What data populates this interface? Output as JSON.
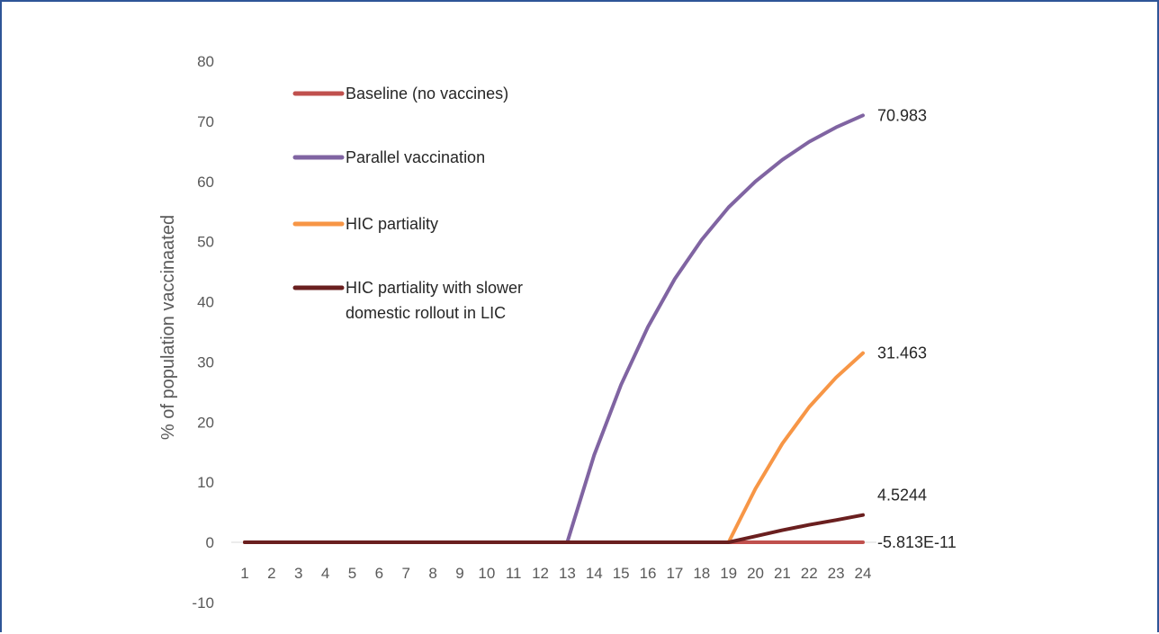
{
  "chart_data": {
    "type": "line",
    "title": "",
    "xlabel": "",
    "ylabel": "% of population vaccinaated",
    "categories": [
      "1",
      "2",
      "3",
      "4",
      "5",
      "6",
      "7",
      "8",
      "9",
      "10",
      "11",
      "12",
      "13",
      "14",
      "15",
      "16",
      "17",
      "18",
      "19",
      "20",
      "21",
      "22",
      "23",
      "24"
    ],
    "ylim": [
      -10,
      80
    ],
    "yticks": [
      "80",
      "70",
      "60",
      "50",
      "40",
      "30",
      "20",
      "10",
      "0",
      "-10"
    ],
    "grid": false,
    "legend_position": "top-left-inside",
    "series": [
      {
        "name": "Baseline (no vaccines)",
        "color": "#c0504d",
        "values": [
          0,
          0,
          0,
          0,
          0,
          0,
          0,
          0,
          0,
          0,
          0,
          0,
          0,
          0,
          0,
          0,
          0,
          0,
          0,
          0,
          0,
          0,
          0,
          -5.813e-11
        ],
        "end_label": "-5.813E-11"
      },
      {
        "name": "Parallel vaccination",
        "color": "#8064a2",
        "values": [
          0,
          0,
          0,
          0,
          0,
          0,
          0,
          0,
          0,
          0,
          0,
          0,
          0,
          14.5,
          26.2,
          35.8,
          43.8,
          50.3,
          55.7,
          60.0,
          63.6,
          66.6,
          69.0,
          70.983
        ],
        "end_label": "70.983"
      },
      {
        "name": "HIC partiality",
        "color": "#f79646",
        "values": [
          0,
          0,
          0,
          0,
          0,
          0,
          0,
          0,
          0,
          0,
          0,
          0,
          0,
          0,
          0,
          0,
          0,
          0,
          0,
          8.9,
          16.4,
          22.5,
          27.4,
          31.463
        ],
        "end_label": "31.463"
      },
      {
        "name": "HIC partiality with slower domestic rollout in LIC",
        "legend_lines": [
          "HIC partiality with slower",
          "domestic rollout in LIC"
        ],
        "color": "#6a1f1f",
        "values": [
          0,
          0,
          0,
          0,
          0,
          0,
          0,
          0,
          0,
          0,
          0,
          0,
          0,
          0,
          0,
          0,
          0,
          0,
          0,
          1.0,
          2.0,
          2.9,
          3.7,
          4.5244
        ],
        "end_label": "4.5244"
      }
    ]
  }
}
